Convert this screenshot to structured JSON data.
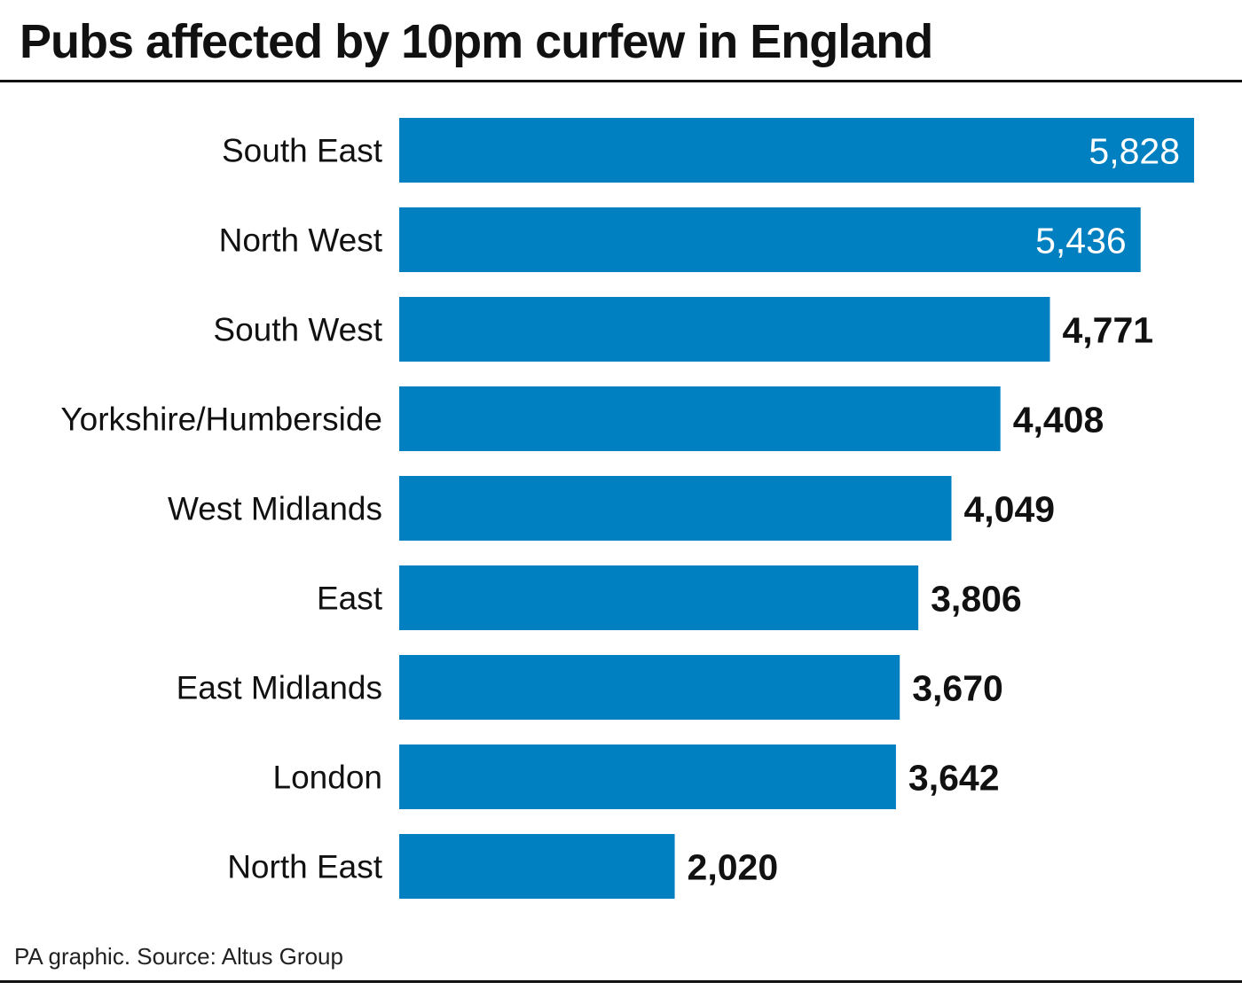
{
  "chart_data": {
    "type": "bar",
    "orientation": "horizontal",
    "title": "Pubs affected by 10pm curfew in England",
    "source": "PA graphic. Source: Altus Group",
    "categories": [
      "South East",
      "North West",
      "South West",
      "Yorkshire/Humberside",
      "West Midlands",
      "East",
      "East Midlands",
      "London",
      "North East"
    ],
    "values": [
      5828,
      5436,
      4771,
      4408,
      4049,
      3806,
      3670,
      3642,
      2020
    ],
    "value_labels": [
      "5,828",
      "5,436",
      "4,771",
      "4,408",
      "4,049",
      "3,806",
      "3,670",
      "3,642",
      "2,020"
    ],
    "xlim": [
      0,
      5828
    ],
    "grid": false,
    "bar_color": "#0080C0",
    "labels_inside_count": 2
  }
}
